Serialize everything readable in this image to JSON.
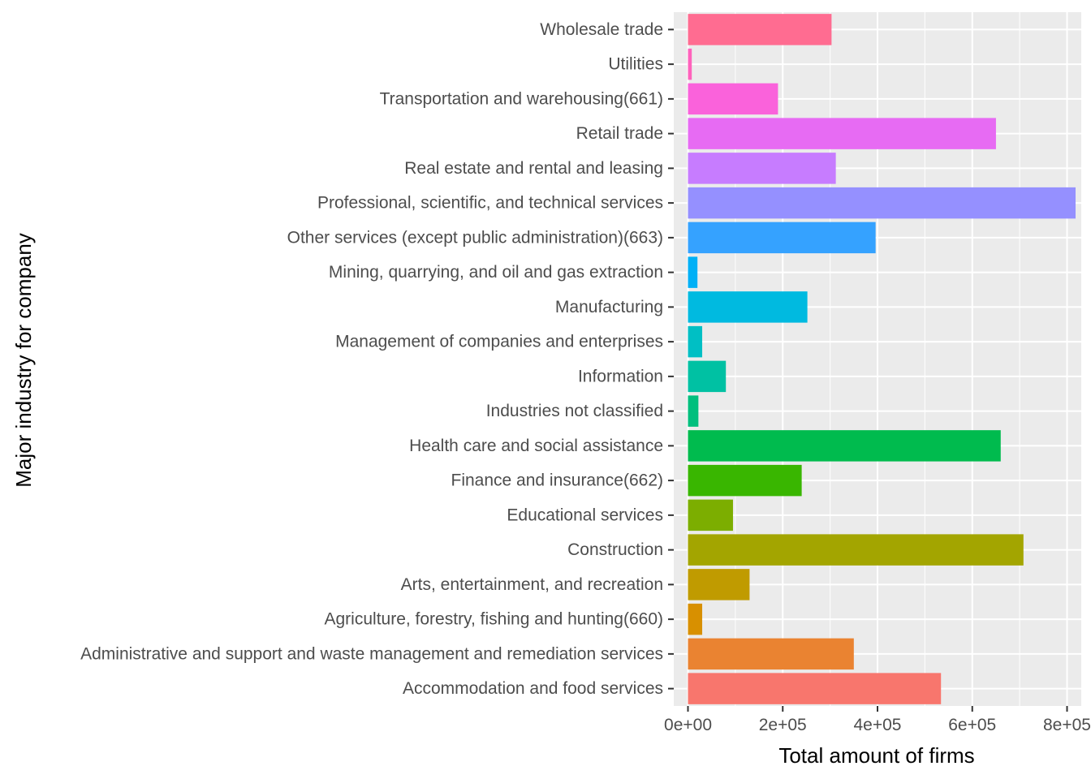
{
  "chart_data": {
    "type": "bar",
    "orientation": "horizontal",
    "title": "",
    "xlabel": "Total amount of firms",
    "ylabel": "Major industry for company",
    "xlim": [
      -30000,
      830000
    ],
    "x_ticks": [
      0,
      200000,
      400000,
      600000,
      800000
    ],
    "x_tick_labels": [
      "0e+00",
      "2e+05",
      "4e+05",
      "6e+05",
      "8e+05"
    ],
    "grid": true,
    "legend": "none",
    "panel_background": "#ebebeb",
    "grid_color": "#ffffff",
    "categories": [
      "Accommodation and food services",
      "Administrative and support and waste management and remediation services",
      "Agriculture, forestry, fishing and hunting(660)",
      "Arts, entertainment, and recreation",
      "Construction",
      "Educational services",
      "Finance and insurance(662)",
      "Health care and social assistance",
      "Industries not classified",
      "Information",
      "Management of companies and enterprises",
      "Manufacturing",
      "Mining, quarrying, and oil and gas extraction",
      "Other services (except public administration)(663)",
      "Professional, scientific, and technical services",
      "Real estate and rental and leasing",
      "Retail trade",
      "Transportation and warehousing(661)",
      "Utilities",
      "Wholesale trade"
    ],
    "values": [
      534000,
      350000,
      30000,
      130000,
      708000,
      95000,
      240000,
      660000,
      22000,
      80000,
      30000,
      252000,
      20000,
      396000,
      818000,
      312000,
      650000,
      190000,
      8000,
      303000
    ],
    "colors": [
      "#F8766D",
      "#EA8331",
      "#D89000",
      "#C09B00",
      "#A3A500",
      "#7CAE00",
      "#39B600",
      "#00BB4E",
      "#00BF7D",
      "#00C1A3",
      "#00BFC4",
      "#00BAE0",
      "#00B0F6",
      "#35A2FF",
      "#9590FF",
      "#C77CFF",
      "#E76BF3",
      "#FA62DB",
      "#FF62BC",
      "#FF6C91"
    ]
  }
}
